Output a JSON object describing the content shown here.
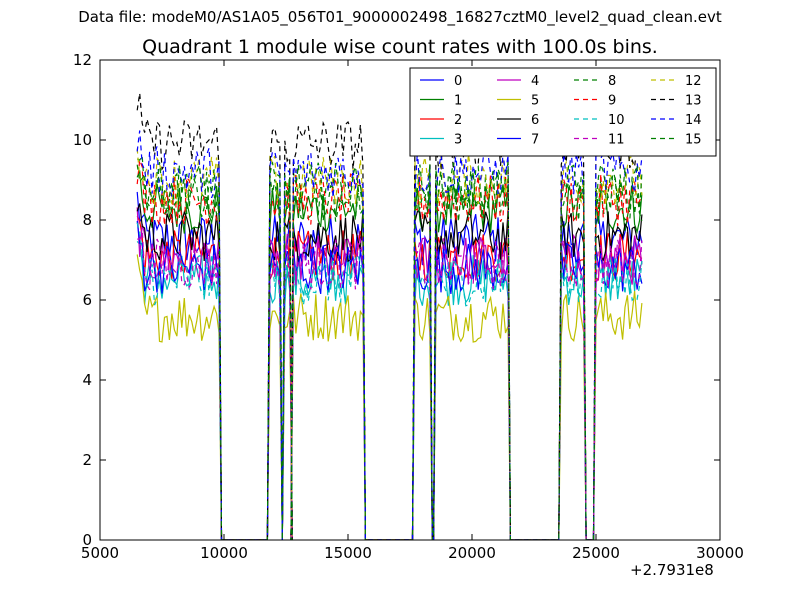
{
  "suptitle": "Data file: modeM0/AS1A05_056T01_9000002498_16827cztM0_level2_quad_clean.evt",
  "chart_data": {
    "type": "line",
    "title": "Quadrant 1 module wise count rates with 100.0s bins.",
    "xlabel": "",
    "ylabel": "",
    "x_offset_label": "+2.7931e8",
    "xlim": [
      5000,
      30000
    ],
    "ylim": [
      0,
      12
    ],
    "x_ticks": [
      "5000",
      "10000",
      "15000",
      "20000",
      "25000",
      "30000"
    ],
    "y_ticks": [
      "0",
      "2",
      "4",
      "6",
      "8",
      "10",
      "12"
    ],
    "grid": false,
    "legend_position": "top-right",
    "legend_columns": 4,
    "series_levels": [
      7.5,
      8.3,
      7.1,
      6.5,
      7.0,
      5.6,
      7.6,
      6.8,
      8.6,
      8.5,
      6.5,
      6.9,
      9.0,
      9.9,
      9.2,
      8.8
    ],
    "series": [
      {
        "name": "0",
        "color": "#0000ff",
        "dash": "solid"
      },
      {
        "name": "1",
        "color": "#008000",
        "dash": "solid"
      },
      {
        "name": "2",
        "color": "#ff0000",
        "dash": "solid"
      },
      {
        "name": "3",
        "color": "#00bfbf",
        "dash": "solid"
      },
      {
        "name": "4",
        "color": "#bf00bf",
        "dash": "solid"
      },
      {
        "name": "5",
        "color": "#bfbf00",
        "dash": "solid"
      },
      {
        "name": "6",
        "color": "#000000",
        "dash": "solid"
      },
      {
        "name": "7",
        "color": "#0000ff",
        "dash": "solid"
      },
      {
        "name": "8",
        "color": "#008000",
        "dash": "dashed"
      },
      {
        "name": "9",
        "color": "#ff0000",
        "dash": "dashed"
      },
      {
        "name": "10",
        "color": "#00bfbf",
        "dash": "dashed"
      },
      {
        "name": "11",
        "color": "#bf00bf",
        "dash": "dashed"
      },
      {
        "name": "12",
        "color": "#bfbf00",
        "dash": "dashed"
      },
      {
        "name": "13",
        "color": "#000000",
        "dash": "dashed"
      },
      {
        "name": "14",
        "color": "#0000ff",
        "dash": "dashed"
      },
      {
        "name": "15",
        "color": "#008000",
        "dash": "dashed"
      }
    ],
    "active_segments": [
      [
        6500,
        9800
      ],
      [
        11850,
        12250
      ],
      [
        12450,
        12650
      ],
      [
        12800,
        15600
      ],
      [
        17700,
        18300
      ],
      [
        18550,
        21450
      ],
      [
        23600,
        24500
      ],
      [
        25000,
        26850
      ]
    ]
  }
}
